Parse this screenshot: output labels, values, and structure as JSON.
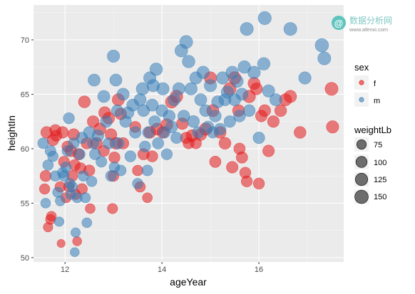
{
  "chart_data": {
    "type": "scatter",
    "xlabel": "ageYear",
    "ylabel": "heightIn",
    "xlim": [
      11.35,
      17.75
    ],
    "ylim": [
      49.6,
      73.2
    ],
    "x_ticks": [
      12,
      14,
      16
    ],
    "y_ticks": [
      50,
      55,
      60,
      65,
      70
    ],
    "grid": true,
    "legend_position": "right",
    "color_legend": {
      "title": "sex",
      "entries": [
        {
          "label": "f",
          "color": "#E41A1C"
        },
        {
          "label": "m",
          "color": "#377EB8"
        }
      ]
    },
    "size_legend": {
      "title": "weightLb",
      "entries": [
        75,
        100,
        125,
        150
      ]
    },
    "size_range": [
      50,
      172
    ],
    "series": [
      {
        "name": "f",
        "color": "#E41A1C",
        "points": [
          [
            11.58,
            56.3,
            88
          ],
          [
            11.6,
            57.5,
            100
          ],
          [
            11.62,
            61.5,
            110
          ],
          [
            11.65,
            52.8,
            75
          ],
          [
            11.7,
            53.5,
            80
          ],
          [
            11.72,
            53.8,
            80
          ],
          [
            11.75,
            60.8,
            105
          ],
          [
            11.8,
            61.7,
            105
          ],
          [
            11.82,
            61.2,
            100
          ],
          [
            11.9,
            56.5,
            90
          ],
          [
            11.92,
            51.3,
            60
          ],
          [
            11.95,
            61.5,
            110
          ],
          [
            11.98,
            58.8,
            100
          ],
          [
            12.02,
            55.5,
            85
          ],
          [
            12.05,
            60.2,
            100
          ],
          [
            12.08,
            56.5,
            90
          ],
          [
            12.12,
            59.8,
            110
          ],
          [
            12.15,
            57.5,
            95
          ],
          [
            12.18,
            61.3,
            110
          ],
          [
            12.2,
            58.5,
            100
          ],
          [
            12.22,
            55.8,
            85
          ],
          [
            12.25,
            51.5,
            70
          ],
          [
            12.28,
            59.5,
            105
          ],
          [
            12.32,
            58.2,
            100
          ],
          [
            12.35,
            56.3,
            95
          ],
          [
            12.4,
            64.3,
            115
          ],
          [
            12.45,
            60.5,
            105
          ],
          [
            12.5,
            58.0,
            100
          ],
          [
            12.52,
            54.5,
            80
          ],
          [
            12.58,
            62.5,
            110
          ],
          [
            12.65,
            60.5,
            110
          ],
          [
            12.72,
            61.8,
            120
          ],
          [
            12.8,
            59.8,
            100
          ],
          [
            12.82,
            63.3,
            120
          ],
          [
            12.9,
            62.8,
            115
          ],
          [
            12.95,
            61.3,
            110
          ],
          [
            12.98,
            54.5,
            85
          ],
          [
            13.0,
            57.5,
            95
          ],
          [
            13.02,
            59.2,
            100
          ],
          [
            13.05,
            60.5,
            115
          ],
          [
            13.1,
            64.5,
            120
          ],
          [
            13.15,
            63.2,
            110
          ],
          [
            13.2,
            60.5,
            105
          ],
          [
            13.45,
            62.0,
            100
          ],
          [
            13.5,
            58.0,
            90
          ],
          [
            13.55,
            56.5,
            90
          ],
          [
            13.62,
            59.5,
            105
          ],
          [
            13.7,
            55.5,
            80
          ],
          [
            13.75,
            61.5,
            115
          ],
          [
            13.8,
            59.3,
            100
          ],
          [
            13.9,
            61.8,
            115
          ],
          [
            14.02,
            61.5,
            110
          ],
          [
            14.1,
            62.2,
            120
          ],
          [
            14.2,
            64.3,
            125
          ],
          [
            14.3,
            64.8,
            130
          ],
          [
            14.42,
            62.3,
            110
          ],
          [
            14.5,
            61.0,
            105
          ],
          [
            14.55,
            60.5,
            100
          ],
          [
            14.62,
            61.2,
            115
          ],
          [
            14.7,
            60.5,
            100
          ],
          [
            14.8,
            61.3,
            115
          ],
          [
            14.9,
            61.8,
            125
          ],
          [
            15.0,
            66.5,
            125
          ],
          [
            15.05,
            63.5,
            120
          ],
          [
            15.1,
            58.8,
            105
          ],
          [
            15.2,
            61.5,
            115
          ],
          [
            15.3,
            60.5,
            115
          ],
          [
            15.4,
            65.5,
            130
          ],
          [
            15.45,
            58.3,
            110
          ],
          [
            15.5,
            66.5,
            130
          ],
          [
            15.58,
            63.5,
            115
          ],
          [
            15.6,
            60.0,
            105
          ],
          [
            15.65,
            59.2,
            105
          ],
          [
            15.72,
            57.8,
            100
          ],
          [
            15.75,
            57.0,
            100
          ],
          [
            15.8,
            64.8,
            130
          ],
          [
            15.9,
            66.0,
            120
          ],
          [
            15.95,
            65.5,
            115
          ],
          [
            16.0,
            56.8,
            100
          ],
          [
            16.05,
            63.0,
            110
          ],
          [
            16.12,
            63.5,
            115
          ],
          [
            16.2,
            59.8,
            110
          ],
          [
            16.3,
            62.5,
            110
          ],
          [
            16.45,
            63.5,
            115
          ],
          [
            16.55,
            64.5,
            120
          ],
          [
            16.65,
            64.8,
            125
          ],
          [
            16.85,
            61.5,
            115
          ],
          [
            17.5,
            65.5,
            140
          ],
          [
            17.52,
            62.0,
            125
          ]
        ]
      },
      {
        "name": "m",
        "color": "#377EB8",
        "points": [
          [
            11.55,
            60.5,
            95
          ],
          [
            11.6,
            55.0,
            80
          ],
          [
            11.65,
            58.5,
            90
          ],
          [
            11.7,
            59.8,
            95
          ],
          [
            11.75,
            59.3,
            90
          ],
          [
            11.8,
            57.5,
            88
          ],
          [
            11.85,
            56.0,
            85
          ],
          [
            11.88,
            53.3,
            75
          ],
          [
            11.9,
            55.2,
            80
          ],
          [
            11.95,
            57.8,
            88
          ],
          [
            11.98,
            57.5,
            90
          ],
          [
            12.02,
            58.3,
            90
          ],
          [
            12.05,
            59.8,
            95
          ],
          [
            12.08,
            62.8,
            100
          ],
          [
            12.1,
            56.8,
            90
          ],
          [
            12.12,
            55.8,
            85
          ],
          [
            12.15,
            56.5,
            90
          ],
          [
            12.18,
            60.5,
            95
          ],
          [
            12.2,
            50.5,
            70
          ],
          [
            12.22,
            52.3,
            75
          ],
          [
            12.25,
            55.5,
            85
          ],
          [
            12.3,
            59.5,
            100
          ],
          [
            12.35,
            61.0,
            105
          ],
          [
            12.38,
            57.5,
            90
          ],
          [
            12.42,
            55.5,
            85
          ],
          [
            12.45,
            53.2,
            80
          ],
          [
            12.5,
            61.5,
            110
          ],
          [
            12.55,
            57.0,
            88
          ],
          [
            12.58,
            60.5,
            105
          ],
          [
            12.6,
            66.3,
            120
          ],
          [
            12.62,
            59.5,
            100
          ],
          [
            12.68,
            61.2,
            110
          ],
          [
            12.75,
            58.8,
            95
          ],
          [
            12.8,
            64.8,
            120
          ],
          [
            12.85,
            62.5,
            110
          ],
          [
            12.9,
            60.5,
            105
          ],
          [
            12.95,
            57.5,
            95
          ],
          [
            13.0,
            68.5,
            125
          ],
          [
            13.02,
            58.3,
            90
          ],
          [
            13.05,
            66.3,
            120
          ],
          [
            13.08,
            63.5,
            110
          ],
          [
            13.1,
            60.5,
            105
          ],
          [
            13.15,
            58.0,
            95
          ],
          [
            13.2,
            65.0,
            120
          ],
          [
            13.25,
            62.5,
            110
          ],
          [
            13.3,
            63.3,
            115
          ],
          [
            13.35,
            59.3,
            100
          ],
          [
            13.4,
            64.0,
            120
          ],
          [
            13.45,
            61.5,
            110
          ],
          [
            13.5,
            56.8,
            90
          ],
          [
            13.55,
            64.5,
            120
          ],
          [
            13.6,
            65.5,
            130
          ],
          [
            13.62,
            63.5,
            115
          ],
          [
            13.65,
            60.2,
            100
          ],
          [
            13.7,
            58.0,
            95
          ],
          [
            13.72,
            61.5,
            110
          ],
          [
            13.75,
            66.5,
            125
          ],
          [
            13.8,
            64.0,
            120
          ],
          [
            13.82,
            65.8,
            125
          ],
          [
            13.85,
            62.5,
            110
          ],
          [
            13.88,
            67.3,
            130
          ],
          [
            13.92,
            60.5,
            105
          ],
          [
            14.0,
            63.5,
            115
          ],
          [
            14.02,
            65.5,
            125
          ],
          [
            14.05,
            61.5,
            110
          ],
          [
            14.1,
            59.5,
            100
          ],
          [
            14.15,
            63.0,
            115
          ],
          [
            14.2,
            62.0,
            115
          ],
          [
            14.25,
            64.5,
            120
          ],
          [
            14.3,
            61.0,
            105
          ],
          [
            14.35,
            65.5,
            125
          ],
          [
            14.4,
            69.0,
            135
          ],
          [
            14.45,
            63.0,
            115
          ],
          [
            14.5,
            69.8,
            140
          ],
          [
            14.55,
            68.0,
            130
          ],
          [
            14.6,
            65.5,
            125
          ],
          [
            14.65,
            62.5,
            115
          ],
          [
            14.7,
            66.5,
            125
          ],
          [
            14.75,
            61.5,
            110
          ],
          [
            14.8,
            64.5,
            120
          ],
          [
            14.85,
            67.0,
            130
          ],
          [
            14.9,
            63.5,
            115
          ],
          [
            14.95,
            62.0,
            110
          ],
          [
            15.0,
            65.8,
            125
          ],
          [
            15.05,
            61.5,
            105
          ],
          [
            15.1,
            63.0,
            115
          ],
          [
            15.15,
            64.3,
            120
          ],
          [
            15.2,
            61.8,
            110
          ],
          [
            15.25,
            66.5,
            125
          ],
          [
            15.3,
            64.5,
            120
          ],
          [
            15.35,
            65.2,
            125
          ],
          [
            15.4,
            62.5,
            110
          ],
          [
            15.45,
            67.0,
            130
          ],
          [
            15.5,
            64.5,
            120
          ],
          [
            15.55,
            66.2,
            125
          ],
          [
            15.6,
            63.0,
            115
          ],
          [
            15.65,
            65.0,
            120
          ],
          [
            15.7,
            67.5,
            130
          ],
          [
            15.75,
            71.0,
            140
          ],
          [
            15.8,
            63.5,
            115
          ],
          [
            15.9,
            67.0,
            130
          ],
          [
            16.0,
            61.0,
            110
          ],
          [
            16.1,
            67.8,
            130
          ],
          [
            16.12,
            72.0,
            145
          ],
          [
            16.2,
            65.3,
            125
          ],
          [
            16.35,
            64.5,
            120
          ],
          [
            16.65,
            71.0,
            140
          ],
          [
            16.95,
            66.5,
            125
          ],
          [
            17.3,
            69.5,
            150
          ],
          [
            17.35,
            68.3,
            140
          ]
        ]
      }
    ]
  },
  "watermark": {
    "icon_glyph": "@",
    "name": "数据分析网",
    "url": "www.afenxi.com"
  }
}
